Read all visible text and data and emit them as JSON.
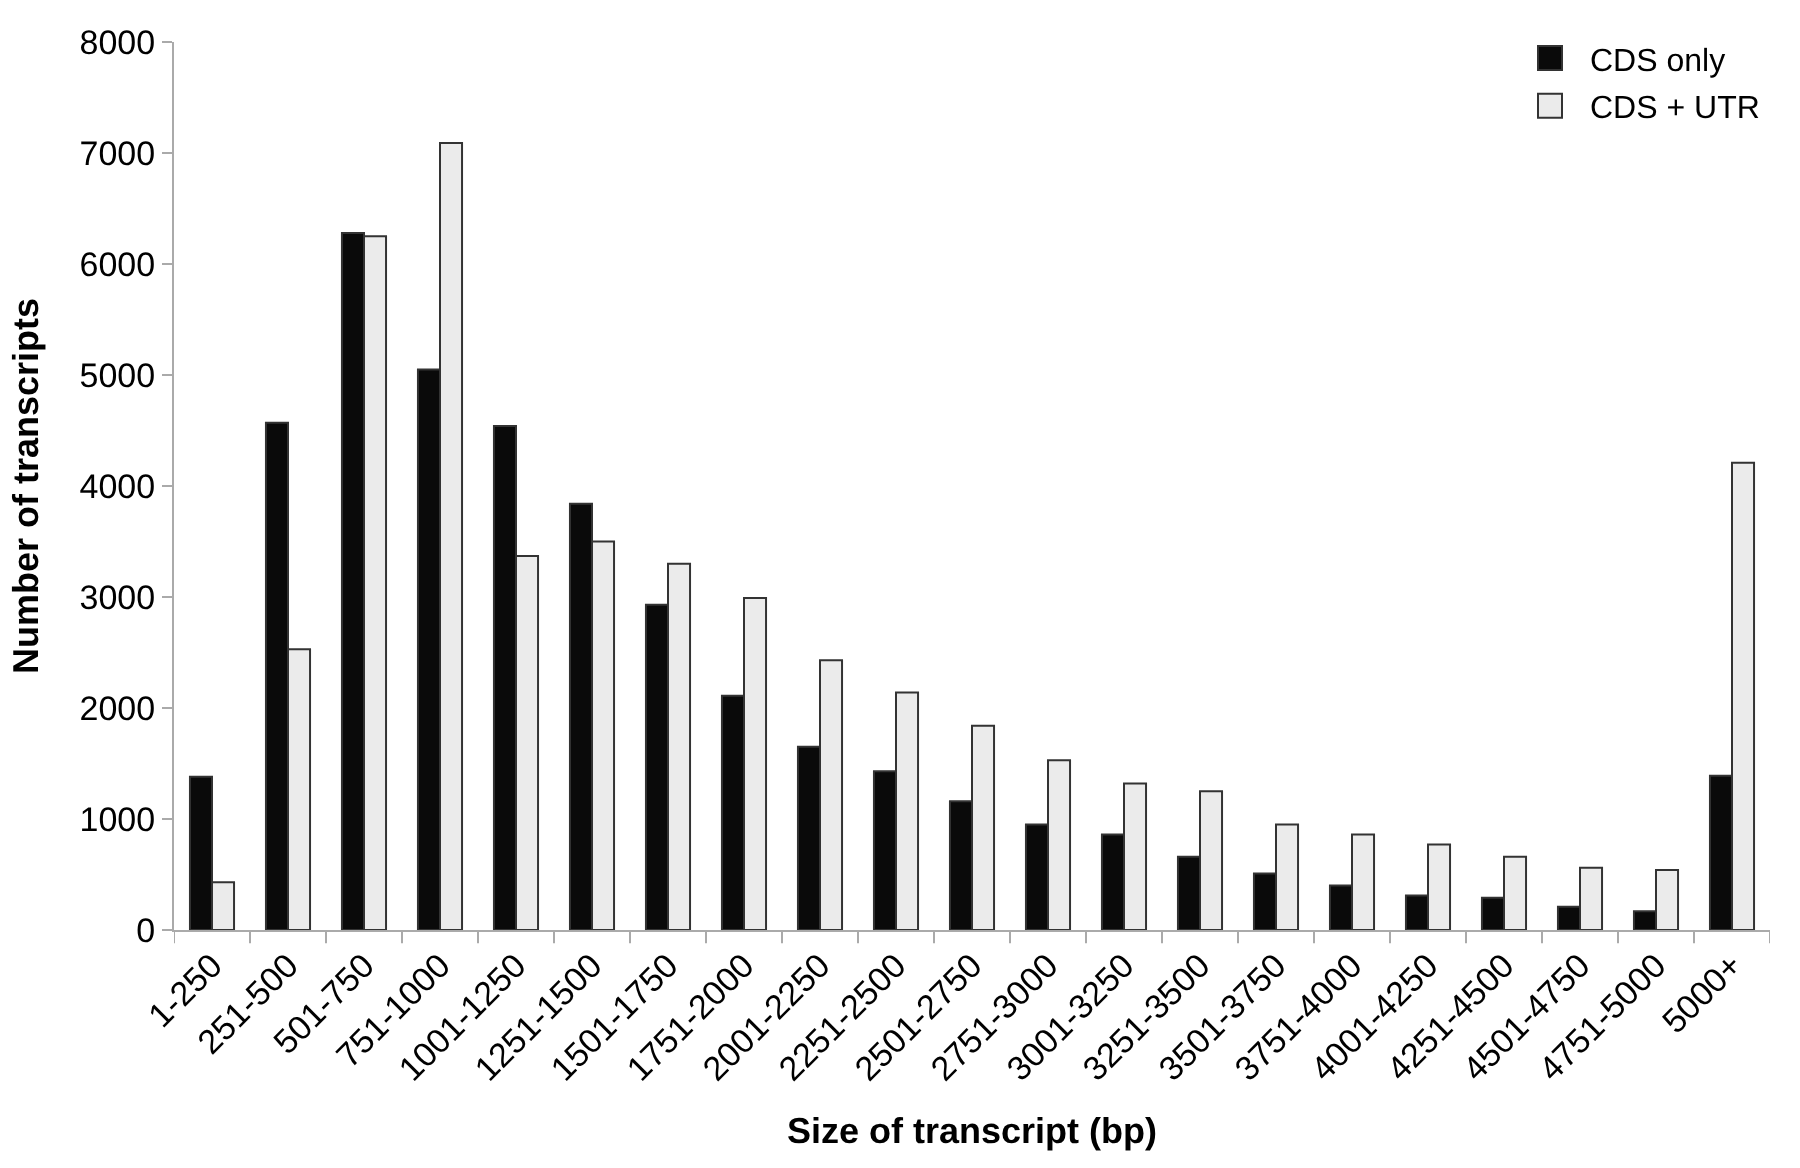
{
  "chart_data": {
    "type": "bar",
    "xlabel": "Size of transcript (bp)",
    "ylabel": "Number of transcripts",
    "categories": [
      "1-250",
      "251-500",
      "501-750",
      "751-1000",
      "1001-1250",
      "1251-1500",
      "1501-1750",
      "1751-2000",
      "2001-2250",
      "2251-2500",
      "2501-2750",
      "2751-3000",
      "3001-3250",
      "3251-3500",
      "3501-3750",
      "3751-4000",
      "4001-4250",
      "4251-4500",
      "4501-4750",
      "4751-5000",
      "5000+"
    ],
    "series": [
      {
        "name": "CDS only",
        "color": "#0a0a0a",
        "values": [
          1380,
          4570,
          6280,
          5050,
          4540,
          3840,
          2930,
          2110,
          1650,
          1430,
          1160,
          950,
          860,
          660,
          510,
          400,
          310,
          290,
          210,
          170,
          1390
        ]
      },
      {
        "name": "CDS + UTR",
        "color": "#ebebeb",
        "values": [
          430,
          2530,
          6250,
          7090,
          3370,
          3500,
          3300,
          2990,
          2430,
          2140,
          1840,
          1530,
          1320,
          1250,
          950,
          860,
          770,
          660,
          560,
          540,
          4210
        ]
      }
    ],
    "ylim": [
      0,
      8000
    ],
    "yticks": [
      0,
      1000,
      2000,
      3000,
      4000,
      5000,
      6000,
      7000,
      8000
    ],
    "legend": "top right"
  }
}
